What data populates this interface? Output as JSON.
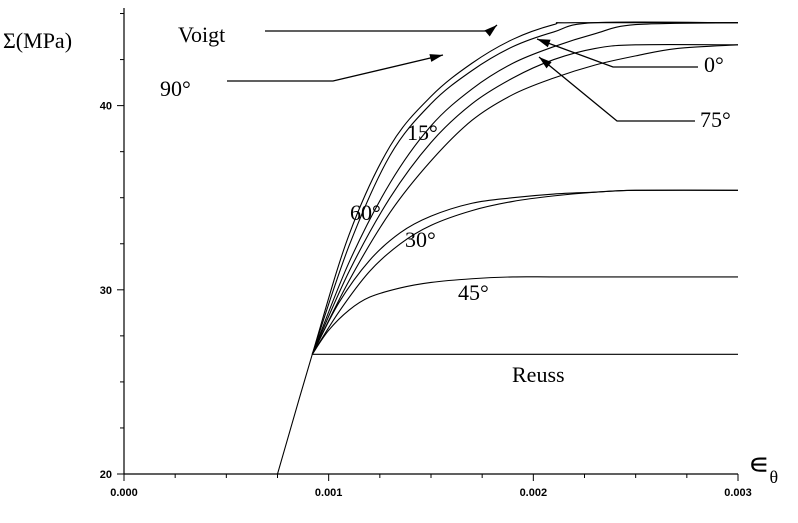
{
  "chart_data": {
    "type": "line",
    "title": "",
    "ylabel": "Σ(MPa)",
    "xlabel": "∊θ",
    "xlim": [
      0.0,
      0.003
    ],
    "ylim": [
      20,
      45.3
    ],
    "x_ticks": [
      0.0,
      0.001,
      0.002,
      0.003
    ],
    "x_tick_labels": [
      "0.000",
      "0.001",
      "0.002",
      "0.003"
    ],
    "y_ticks": [
      20,
      30,
      40
    ],
    "y_tick_labels": [
      "20",
      "30",
      "40"
    ],
    "grid": false,
    "series": [
      {
        "name": "Voigt",
        "x": [
          0.00075,
          0.00092,
          0.0011,
          0.0013,
          0.0015,
          0.0017,
          0.0019,
          0.0021,
          0.0022,
          0.003
        ],
        "y": [
          20.0,
          26.5,
          33.0,
          37.8,
          40.5,
          42.3,
          43.6,
          44.4,
          44.5,
          44.5
        ]
      },
      {
        "name": "90°",
        "x": [
          0.00092,
          0.0011,
          0.0013,
          0.0015,
          0.0017,
          0.0019,
          0.0021,
          0.0023,
          0.003
        ],
        "y": [
          26.5,
          32.4,
          37.3,
          40.1,
          41.9,
          43.2,
          44.0,
          44.5,
          44.5
        ]
      },
      {
        "name": "0°",
        "x": [
          0.00092,
          0.0011,
          0.0013,
          0.0015,
          0.0017,
          0.0019,
          0.0021,
          0.0023,
          0.0025,
          0.003
        ],
        "y": [
          26.5,
          31.5,
          35.8,
          38.9,
          40.9,
          42.3,
          43.2,
          43.9,
          44.4,
          44.5
        ]
      },
      {
        "name": "15°",
        "x": [
          0.00092,
          0.0011,
          0.0013,
          0.0015,
          0.0017,
          0.0019,
          0.0021,
          0.0023,
          0.0025,
          0.003
        ],
        "y": [
          26.5,
          31.0,
          35.0,
          38.0,
          40.1,
          41.5,
          42.5,
          43.1,
          43.3,
          43.3
        ]
      },
      {
        "name": "75°",
        "x": [
          0.00092,
          0.0011,
          0.0013,
          0.0015,
          0.0017,
          0.0019,
          0.0021,
          0.0023,
          0.0025,
          0.0027,
          0.003
        ],
        "y": [
          26.5,
          30.5,
          34.2,
          37.0,
          39.2,
          40.6,
          41.5,
          42.2,
          42.7,
          43.1,
          43.3
        ]
      },
      {
        "name": "60°",
        "x": [
          0.00092,
          0.00105,
          0.0012,
          0.00135,
          0.0015,
          0.0017,
          0.0019,
          0.0021,
          0.0023,
          0.0025,
          0.003
        ],
        "y": [
          26.5,
          29.3,
          31.6,
          33.1,
          34.0,
          34.7,
          35.0,
          35.2,
          35.3,
          35.4,
          35.4
        ]
      },
      {
        "name": "30°",
        "x": [
          0.00092,
          0.00105,
          0.0012,
          0.00135,
          0.0015,
          0.0017,
          0.0019,
          0.0021,
          0.0023,
          0.0025,
          0.003
        ],
        "y": [
          26.5,
          28.8,
          31.0,
          32.5,
          33.5,
          34.3,
          34.8,
          35.1,
          35.3,
          35.4,
          35.4
        ]
      },
      {
        "name": "45°",
        "x": [
          0.00092,
          0.001,
          0.0011,
          0.0012,
          0.00135,
          0.0015,
          0.0017,
          0.0019,
          0.0021,
          0.0024,
          0.003
        ],
        "y": [
          26.5,
          27.8,
          28.9,
          29.6,
          30.1,
          30.4,
          30.6,
          30.7,
          30.7,
          30.7,
          30.7
        ]
      },
      {
        "name": "Reuss",
        "x": [
          0.00092,
          0.003
        ],
        "y": [
          26.5,
          26.5
        ]
      }
    ],
    "annotations": [
      {
        "text": "Voigt",
        "arrow": true
      },
      {
        "text": "90°",
        "arrow": true
      },
      {
        "text": "0°",
        "arrow": true
      },
      {
        "text": "75°",
        "arrow": true
      },
      {
        "text": "15°",
        "arrow": false
      },
      {
        "text": "60°",
        "arrow": false
      },
      {
        "text": "30°",
        "arrow": false
      },
      {
        "text": "45°",
        "arrow": false
      },
      {
        "text": "Reuss",
        "arrow": false
      }
    ]
  }
}
